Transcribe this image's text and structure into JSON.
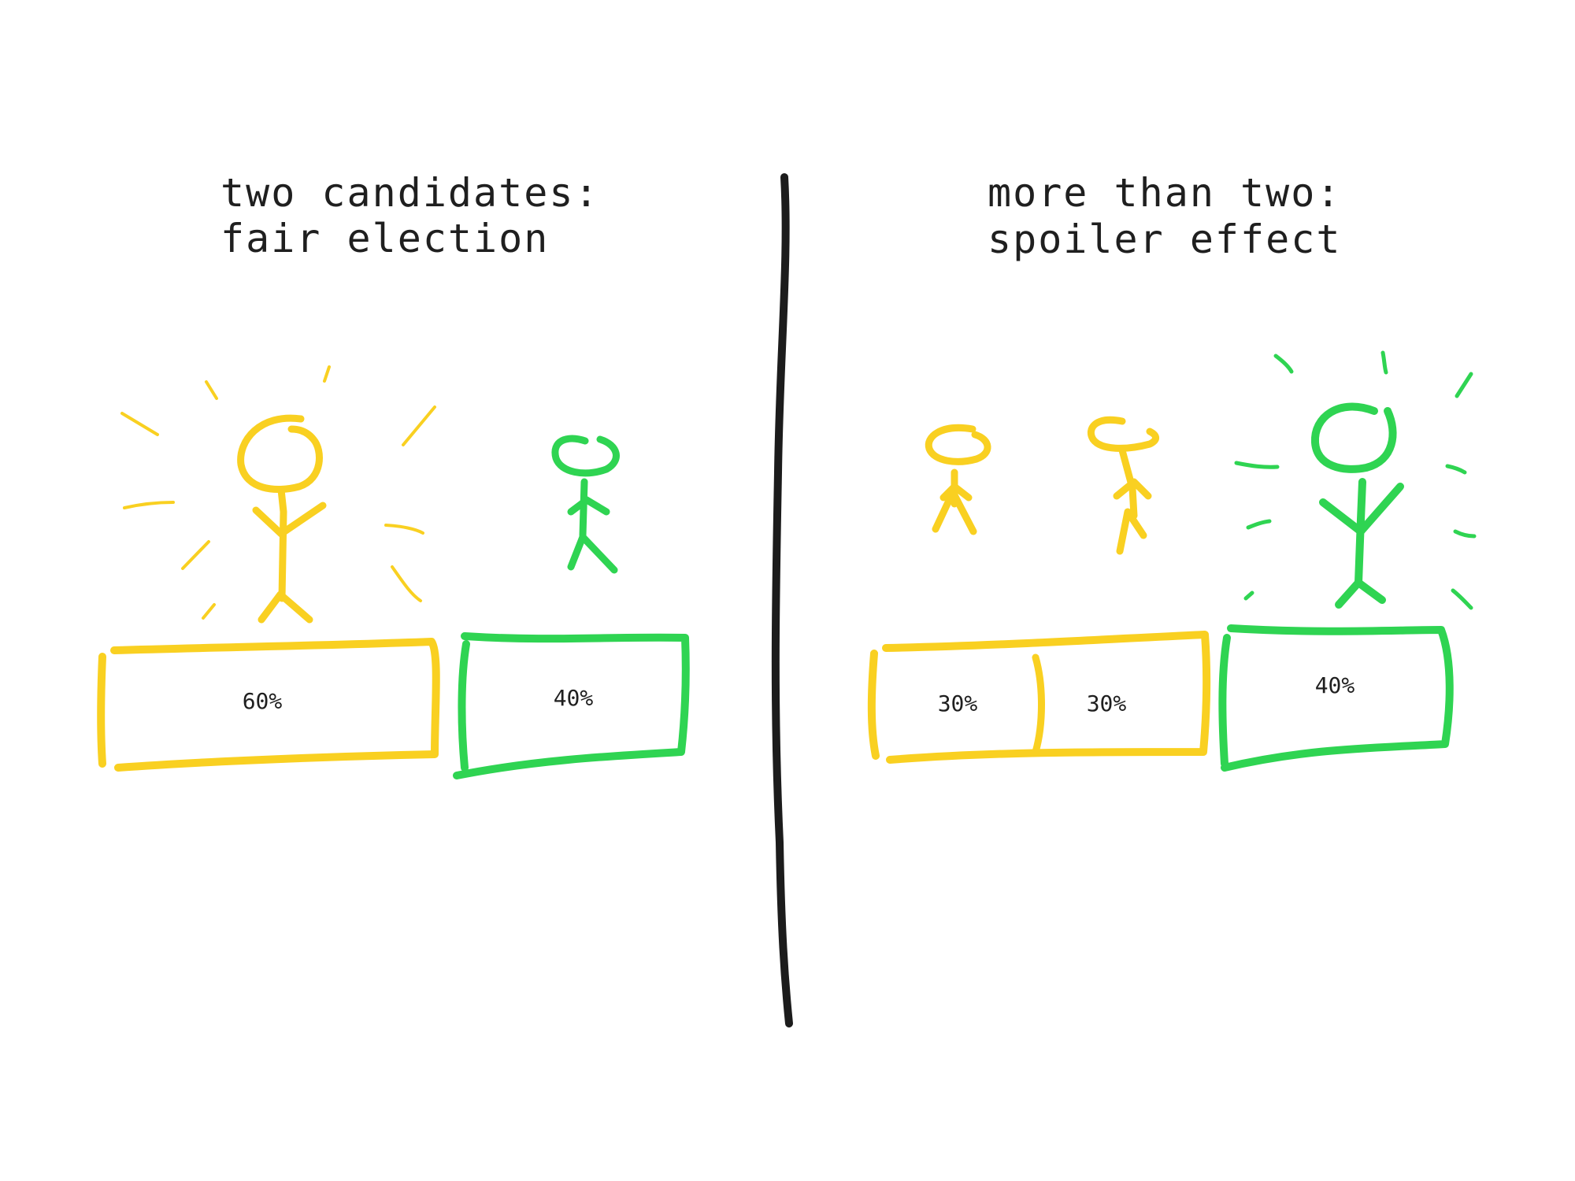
{
  "left_panel": {
    "title_line1": "two candidates:",
    "title_line2": "fair election",
    "bars": [
      {
        "label": "60%",
        "color": "#f9d021"
      },
      {
        "label": "40%",
        "color": "#2fd452"
      }
    ]
  },
  "right_panel": {
    "title_line1": "more than two:",
    "title_line2": "spoiler effect",
    "bars": [
      {
        "label": "30%",
        "color": "#f9d021"
      },
      {
        "label": "30%",
        "color": "#f9d021"
      },
      {
        "label": "40%",
        "color": "#2fd452"
      }
    ]
  },
  "colors": {
    "yellow": "#f9d021",
    "green": "#2fd452",
    "divider": "#1c1c1c"
  }
}
